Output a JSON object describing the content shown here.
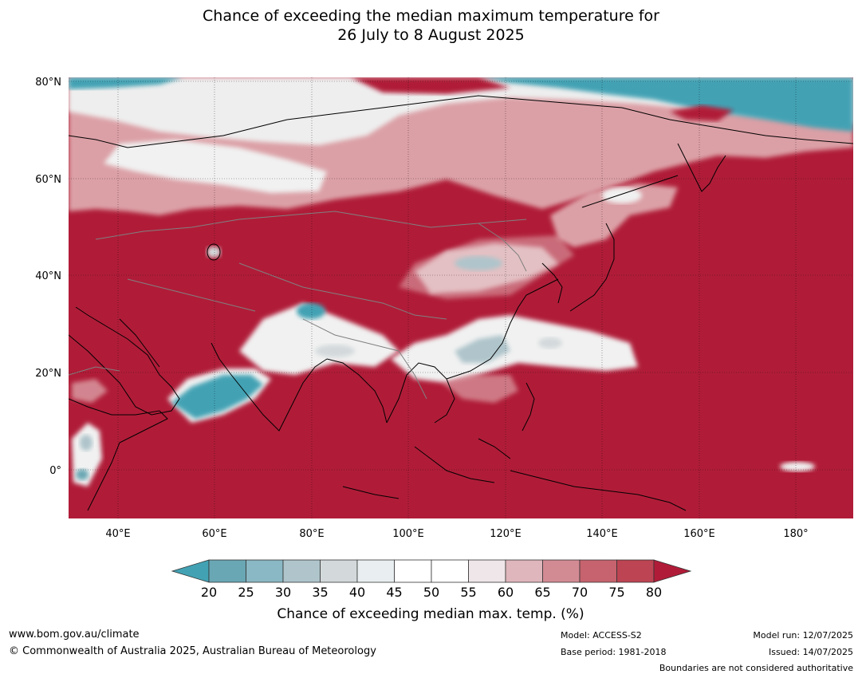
{
  "title": {
    "line1": "Chance of exceeding the median maximum temperature for",
    "line2": "26 July to 8 August 2025"
  },
  "map": {
    "lat_labels": [
      "80°N",
      "60°N",
      "40°N",
      "20°N",
      "0°"
    ],
    "lon_labels": [
      "40°E",
      "60°E",
      "80°E",
      "100°E",
      "120°E",
      "140°E",
      "160°E",
      "180°"
    ],
    "colors": {
      "very_high": "#b01c38",
      "high": "#c9636e",
      "moderate_high": "#dba0a6",
      "neutral": "#f1f1f1",
      "low": "#7fb3c1",
      "very_low": "#42a2b4",
      "coast": "#000000",
      "border": "#808080"
    }
  },
  "legend": {
    "ticks": [
      "20",
      "25",
      "30",
      "35",
      "40",
      "45",
      "50",
      "55",
      "60",
      "65",
      "70",
      "75",
      "80"
    ],
    "colors": [
      "#42a2b4",
      "#6aa7b4",
      "#8ab8c4",
      "#afc5cb",
      "#d3d9db",
      "#e9eff1",
      "#ffffff",
      "#ffffff",
      "#eee6e8",
      "#deb6bb",
      "#d38b93",
      "#c6636e",
      "#bd4452",
      "#b01c38"
    ],
    "label": "Chance of exceeding median max. temp. (%)"
  },
  "footer": {
    "website": "www.bom.gov.au/climate",
    "copyright": "© Commonwealth of Australia 2025, Australian Bureau of Meteorology",
    "model": "Model: ACCESS-S2",
    "base_period": "Base period: 1981-2018",
    "model_run": "Model run: 12/07/2025",
    "issued": "Issued: 14/07/2025",
    "disclaimer": "Boundaries are not considered authoritative"
  }
}
